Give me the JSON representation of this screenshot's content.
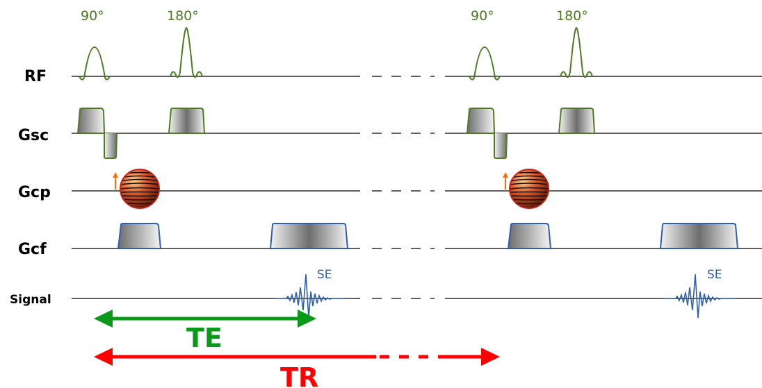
{
  "rows": {
    "rf": "RF",
    "gsc": "Gsc",
    "gcp": "Gcp",
    "gcf": "Gcf",
    "signal": "Signal"
  },
  "pulses": {
    "first_90": "90°",
    "first_180": "180°",
    "second_90": "90°",
    "second_180": "180°"
  },
  "echo": {
    "first": "SE",
    "second": "SE"
  },
  "intervals": {
    "te": "TE",
    "tr": "TR"
  },
  "colors": {
    "rf": "#4d7a22",
    "gradient_slice": "#4d7a22",
    "gradient_readout": "#2f5fa8",
    "signal": "#2f5fa8",
    "te_arrow": "#0a9a1a",
    "tr_arrow": "#ff0000",
    "phase_arrow": "#ff6a00"
  }
}
